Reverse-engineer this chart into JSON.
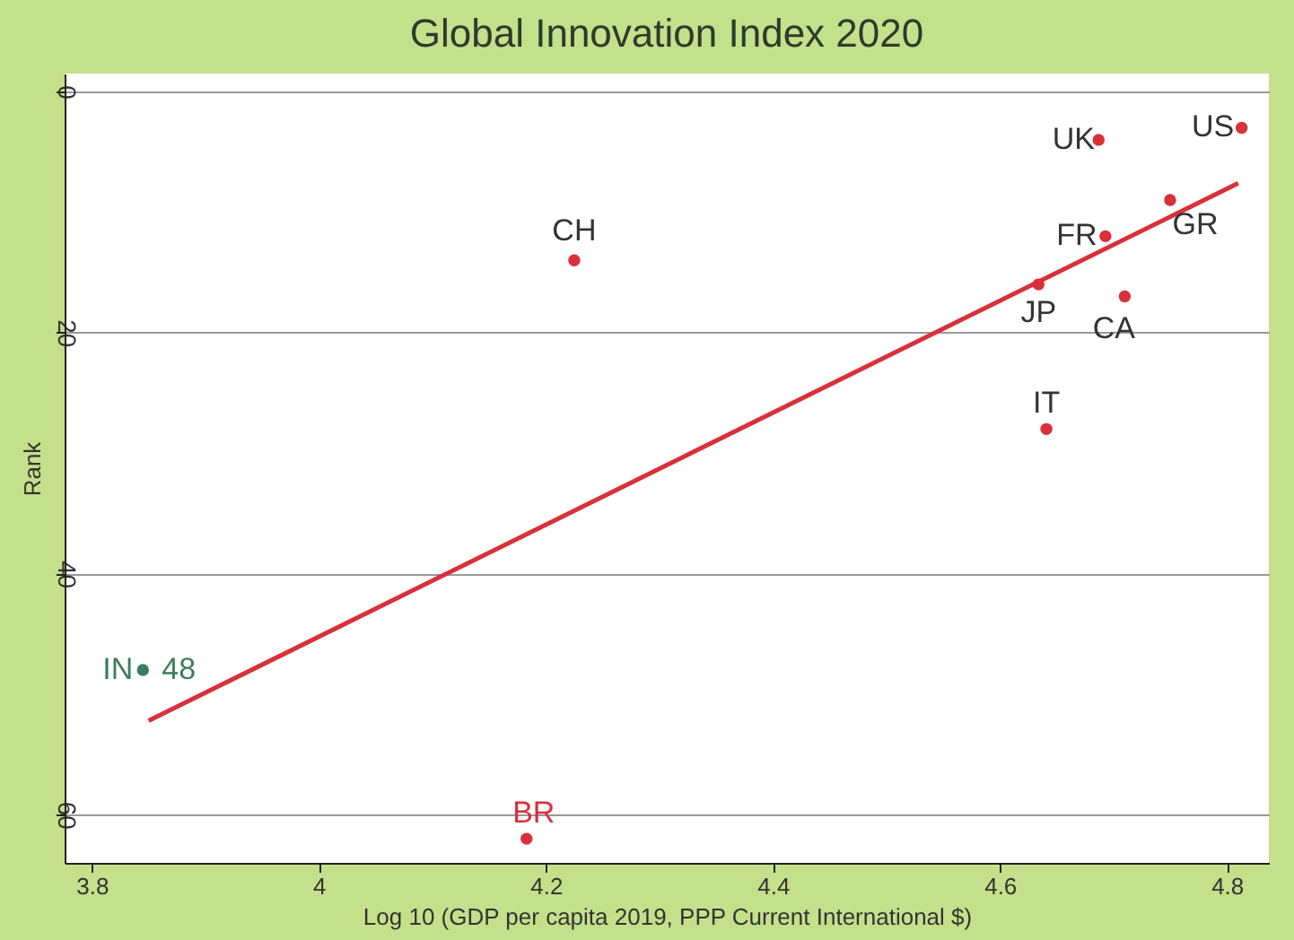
{
  "chart_data": {
    "type": "scatter",
    "title": "Global Innovation Index 2020",
    "xlabel": "Log 10 (GDP per capita 2019, PPP Current International $)",
    "ylabel": "Rank",
    "series": [
      {
        "marker": "circle",
        "x": [
          4.687,
          4.813,
          4.75,
          4.693,
          4.634,
          4.71,
          4.641,
          4.225,
          4.183,
          3.845
        ],
        "values": [
          4,
          3,
          9,
          12,
          16,
          17,
          28,
          14,
          62,
          48
        ],
        "colors": [
          "#d9303a",
          "#d9303a",
          "#d9303a",
          "#d9303a",
          "#d9303a",
          "#d9303a",
          "#d9303a",
          "#d9303a",
          "#d9303a",
          "#3a7d5a"
        ]
      },
      {
        "type": "line",
        "x": [
          3.85,
          4.81
        ],
        "values": [
          52.2,
          7.6
        ],
        "color": "#d9303a"
      }
    ],
    "annotations": [
      {
        "text": "UK",
        "x": 4.687,
        "y": 4
      },
      {
        "text": "US",
        "x": 4.813,
        "y": 3
      },
      {
        "text": "GR",
        "x": 4.75,
        "y": 9
      },
      {
        "text": "FR",
        "x": 4.693,
        "y": 12
      },
      {
        "text": "JP",
        "x": 4.634,
        "y": 16
      },
      {
        "text": "CA",
        "x": 4.71,
        "y": 17
      },
      {
        "text": "IT",
        "x": 4.641,
        "y": 28
      },
      {
        "text": "CH",
        "x": 4.225,
        "y": 14
      },
      {
        "text": "BR",
        "x": 4.183,
        "y": 62
      },
      {
        "text": "IN",
        "x": 3.845,
        "y": 48
      },
      {
        "text": "48",
        "x": 3.845,
        "y": 48
      }
    ],
    "xlim": [
      3.776,
      4.837
    ],
    "ylim": [
      64,
      -1.5
    ],
    "xticks": [
      3.8,
      4,
      4.2,
      4.4,
      4.6,
      4.8
    ],
    "yticks": [
      0,
      20,
      40,
      60
    ],
    "grid": "y"
  }
}
